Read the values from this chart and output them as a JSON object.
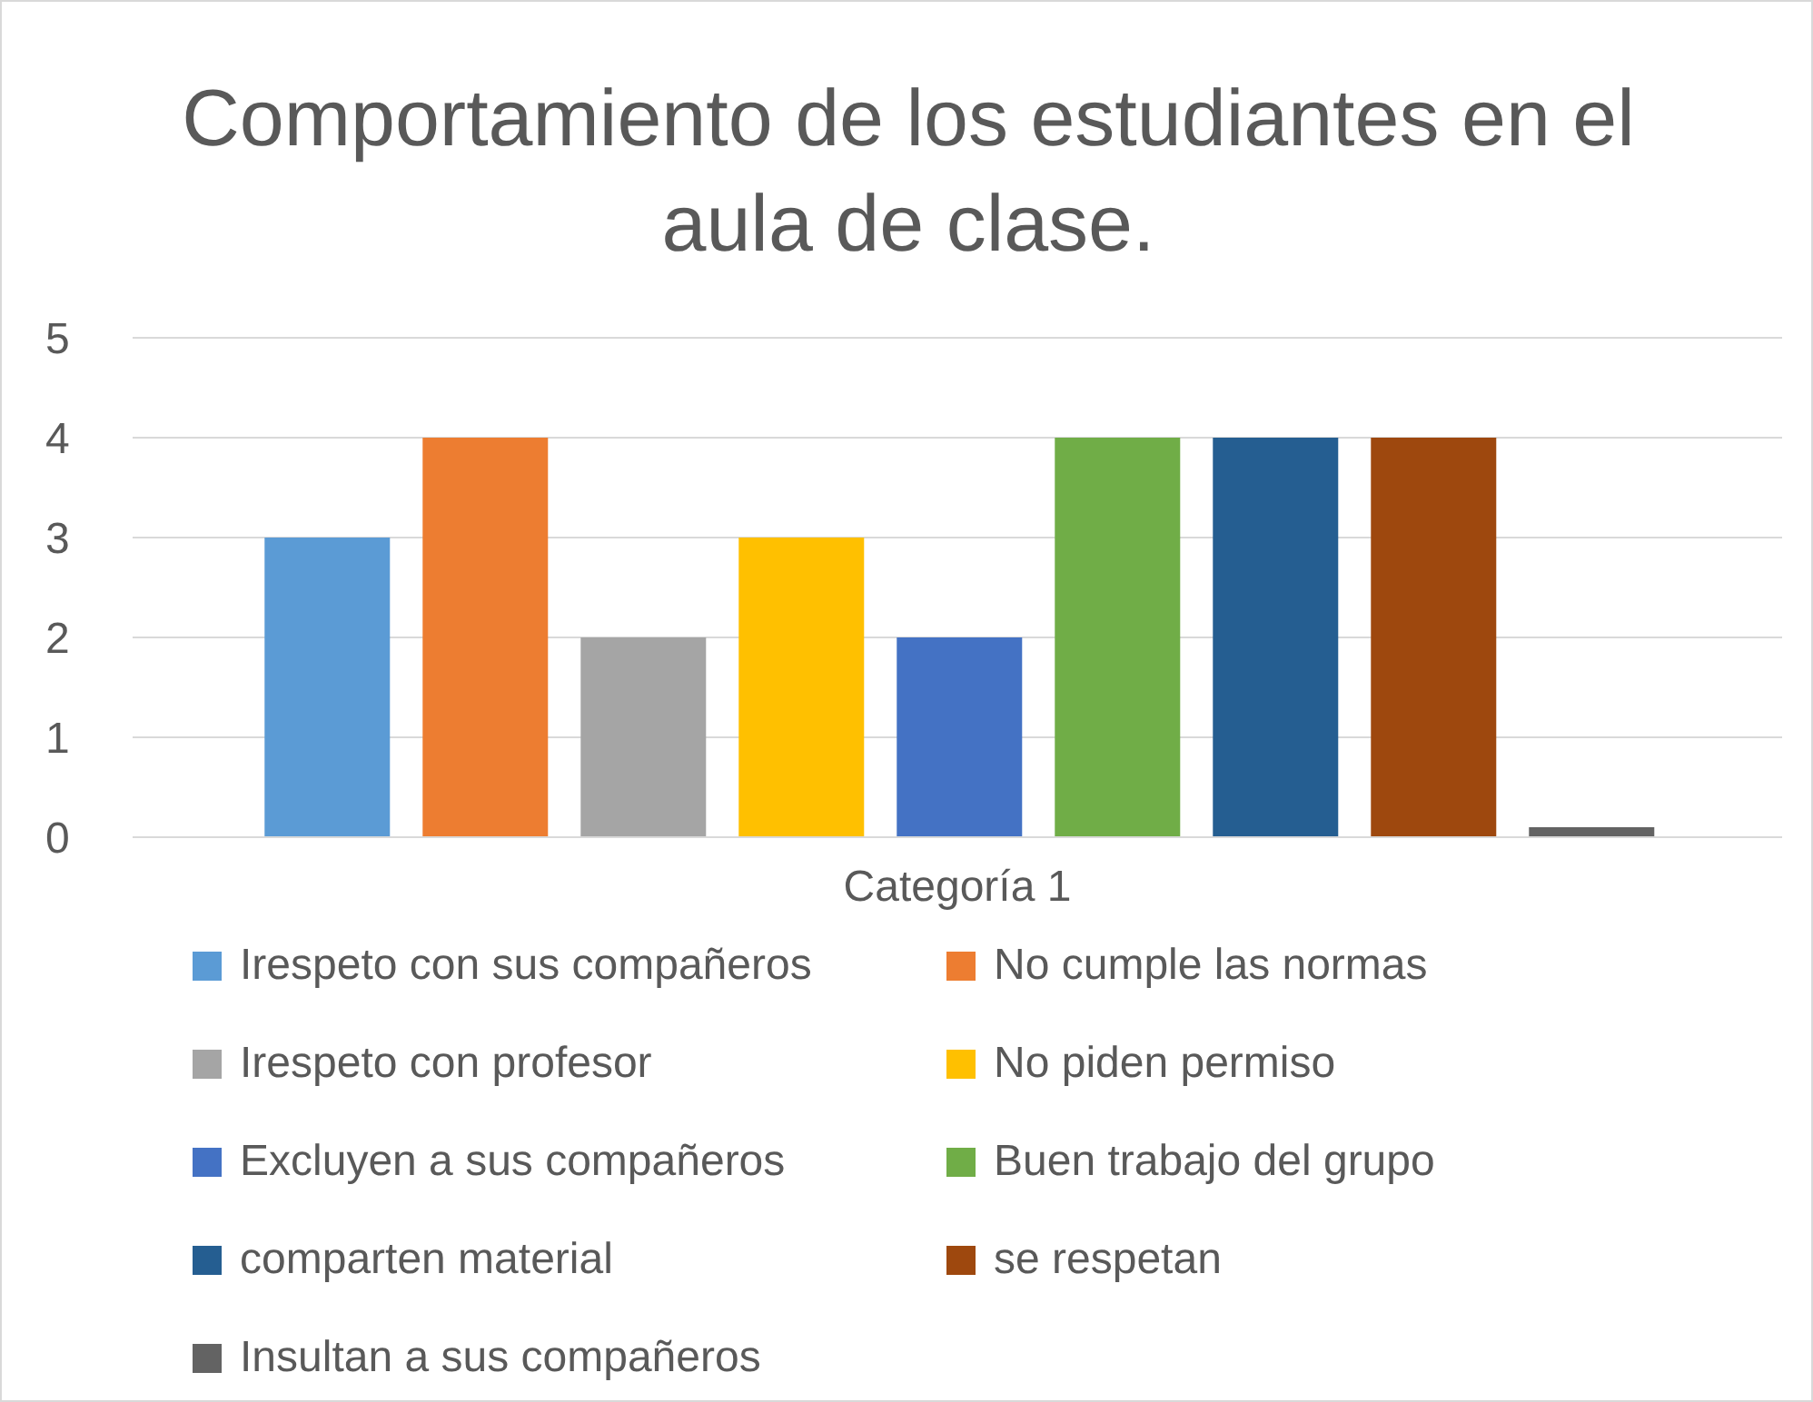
{
  "chart_data": {
    "type": "bar",
    "title": "Comportamiento de los estudiantes en el aula de clase.",
    "categories": [
      "Categoría 1"
    ],
    "series": [
      {
        "name": "Irespeto con sus compañeros",
        "color": "#5b9bd5",
        "values": [
          3
        ]
      },
      {
        "name": "No cumple las normas",
        "color": "#ed7d31",
        "values": [
          4
        ]
      },
      {
        "name": "Irespeto con profesor",
        "color": "#a5a5a5",
        "values": [
          2
        ]
      },
      {
        "name": "No piden permiso",
        "color": "#ffc000",
        "values": [
          3
        ]
      },
      {
        "name": "Excluyen a sus compañeros",
        "color": "#4472c4",
        "values": [
          2
        ]
      },
      {
        "name": "Buen trabajo del grupo",
        "color": "#70ad47",
        "values": [
          4
        ]
      },
      {
        "name": "comparten material",
        "color": "#255e91",
        "values": [
          4
        ]
      },
      {
        "name": "se respetan",
        "color": "#9e480e",
        "values": [
          4
        ]
      },
      {
        "name": "Insultan a sus compañeros",
        "color": "#636363",
        "values": [
          0.1
        ]
      }
    ],
    "ylim": [
      0,
      5
    ],
    "yticks": [
      0,
      1,
      2,
      3,
      4,
      5
    ],
    "grid": "y",
    "legend": "bottom"
  }
}
